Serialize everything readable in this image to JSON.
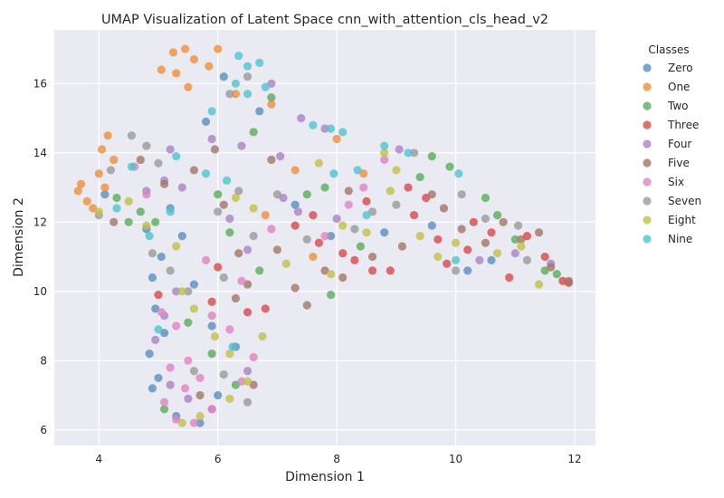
{
  "chart_data": {
    "type": "scatter",
    "title": "UMAP Visualization of Latent Space cnn_with_attention_cls_head_v2",
    "xlabel": "Dimension 1",
    "ylabel": "Dimension 2",
    "xlim": [
      3.25,
      12.35
    ],
    "ylim": [
      5.55,
      17.55
    ],
    "xticks": [
      4,
      6,
      8,
      10,
      12
    ],
    "yticks": [
      6,
      8,
      10,
      12,
      14,
      16
    ],
    "grid": true,
    "legend": {
      "title": "Classes",
      "placement": "outside-right"
    },
    "series": [
      {
        "name": "Zero",
        "color": "#5a8fc0",
        "points": [
          [
            4.9,
            7.2
          ],
          [
            5.0,
            7.5
          ],
          [
            4.85,
            8.2
          ],
          [
            5.1,
            8.8
          ],
          [
            4.95,
            9.5
          ],
          [
            4.9,
            10.4
          ],
          [
            5.05,
            11.0
          ],
          [
            4.8,
            11.8
          ],
          [
            5.2,
            12.4
          ],
          [
            5.4,
            11.6
          ],
          [
            5.6,
            10.2
          ],
          [
            5.9,
            9.0
          ],
          [
            6.3,
            8.4
          ],
          [
            6.0,
            7.0
          ],
          [
            5.3,
            6.4
          ],
          [
            5.7,
            6.2
          ],
          [
            4.1,
            12.8
          ],
          [
            5.8,
            14.9
          ],
          [
            6.1,
            16.2
          ],
          [
            6.7,
            15.2
          ],
          [
            7.3,
            12.5
          ],
          [
            7.9,
            11.6
          ],
          [
            8.8,
            11.7
          ],
          [
            9.6,
            11.9
          ],
          [
            10.2,
            10.6
          ],
          [
            10.6,
            10.9
          ]
        ]
      },
      {
        "name": "One",
        "color": "#f0903a",
        "points": [
          [
            3.7,
            13.1
          ],
          [
            3.8,
            12.6
          ],
          [
            3.9,
            12.4
          ],
          [
            4.0,
            13.4
          ],
          [
            4.05,
            14.1
          ],
          [
            4.15,
            14.5
          ],
          [
            4.25,
            13.8
          ],
          [
            4.1,
            13.0
          ],
          [
            3.65,
            12.9
          ],
          [
            5.05,
            16.4
          ],
          [
            5.25,
            16.9
          ],
          [
            5.45,
            17.0
          ],
          [
            5.6,
            16.7
          ],
          [
            5.85,
            16.5
          ],
          [
            6.0,
            17.0
          ],
          [
            5.3,
            16.3
          ],
          [
            5.5,
            15.9
          ],
          [
            6.9,
            15.4
          ],
          [
            6.8,
            12.2
          ],
          [
            7.6,
            11.0
          ],
          [
            7.3,
            13.5
          ],
          [
            8.0,
            14.4
          ],
          [
            8.45,
            13.4
          ],
          [
            6.3,
            15.7
          ]
        ]
      },
      {
        "name": "Two",
        "color": "#5aac5a",
        "points": [
          [
            4.3,
            12.7
          ],
          [
            4.5,
            12.0
          ],
          [
            4.7,
            12.3
          ],
          [
            4.95,
            12.0
          ],
          [
            5.5,
            9.1
          ],
          [
            5.9,
            8.2
          ],
          [
            6.3,
            7.3
          ],
          [
            5.1,
            6.6
          ],
          [
            6.0,
            12.8
          ],
          [
            6.2,
            11.7
          ],
          [
            6.6,
            14.6
          ],
          [
            6.9,
            15.6
          ],
          [
            7.8,
            13.0
          ],
          [
            7.9,
            9.9
          ],
          [
            8.4,
            11.3
          ],
          [
            9.4,
            13.3
          ],
          [
            9.6,
            13.9
          ],
          [
            9.9,
            13.6
          ],
          [
            10.5,
            12.7
          ],
          [
            10.7,
            12.2
          ],
          [
            11.0,
            11.5
          ],
          [
            11.5,
            10.6
          ],
          [
            11.7,
            10.5
          ],
          [
            6.7,
            10.6
          ],
          [
            7.5,
            12.8
          ]
        ]
      },
      {
        "name": "Three",
        "color": "#d9494a",
        "points": [
          [
            5.0,
            9.9
          ],
          [
            5.9,
            9.7
          ],
          [
            6.0,
            10.7
          ],
          [
            6.5,
            9.4
          ],
          [
            6.8,
            9.5
          ],
          [
            7.3,
            11.9
          ],
          [
            7.7,
            11.4
          ],
          [
            8.1,
            11.1
          ],
          [
            8.3,
            10.9
          ],
          [
            8.6,
            10.6
          ],
          [
            8.9,
            10.6
          ],
          [
            9.3,
            12.2
          ],
          [
            9.7,
            11.5
          ],
          [
            9.85,
            10.8
          ],
          [
            10.2,
            11.2
          ],
          [
            10.3,
            12.0
          ],
          [
            10.6,
            11.7
          ],
          [
            10.9,
            10.4
          ],
          [
            11.2,
            11.6
          ],
          [
            11.5,
            11.0
          ],
          [
            11.8,
            10.3
          ],
          [
            11.9,
            10.25
          ],
          [
            9.2,
            13.0
          ],
          [
            9.5,
            12.7
          ],
          [
            8.5,
            12.6
          ],
          [
            7.6,
            12.2
          ]
        ]
      },
      {
        "name": "Four",
        "color": "#a983c6",
        "points": [
          [
            4.8,
            12.9
          ],
          [
            5.2,
            14.1
          ],
          [
            5.1,
            13.2
          ],
          [
            5.4,
            13.0
          ],
          [
            5.9,
            14.4
          ],
          [
            6.4,
            14.2
          ],
          [
            6.2,
            12.1
          ],
          [
            6.5,
            11.2
          ],
          [
            5.3,
            10.0
          ],
          [
            5.1,
            9.3
          ],
          [
            4.95,
            8.6
          ],
          [
            5.2,
            7.3
          ],
          [
            5.5,
            6.9
          ],
          [
            5.9,
            6.6
          ],
          [
            6.5,
            7.7
          ],
          [
            7.1,
            12.7
          ],
          [
            7.35,
            12.3
          ],
          [
            7.05,
            13.9
          ],
          [
            7.4,
            15.0
          ],
          [
            8.0,
            12.1
          ],
          [
            9.05,
            14.1
          ],
          [
            10.4,
            10.9
          ],
          [
            11.0,
            11.1
          ],
          [
            11.6,
            10.8
          ],
          [
            7.8,
            14.7
          ],
          [
            6.9,
            16.0
          ]
        ]
      },
      {
        "name": "Five",
        "color": "#a37565",
        "points": [
          [
            4.25,
            12.0
          ],
          [
            4.7,
            13.8
          ],
          [
            5.1,
            13.1
          ],
          [
            5.6,
            13.5
          ],
          [
            5.95,
            14.1
          ],
          [
            6.1,
            12.5
          ],
          [
            6.35,
            11.1
          ],
          [
            6.3,
            9.8
          ],
          [
            6.5,
            10.2
          ],
          [
            7.0,
            11.2
          ],
          [
            7.3,
            10.1
          ],
          [
            7.5,
            9.6
          ],
          [
            7.8,
            10.6
          ],
          [
            8.1,
            10.4
          ],
          [
            8.6,
            11.0
          ],
          [
            9.1,
            11.3
          ],
          [
            9.6,
            12.8
          ],
          [
            9.8,
            12.4
          ],
          [
            10.1,
            11.8
          ],
          [
            10.5,
            11.4
          ],
          [
            10.8,
            12.0
          ],
          [
            11.1,
            11.5
          ],
          [
            11.4,
            11.7
          ],
          [
            11.6,
            10.7
          ],
          [
            11.9,
            10.3
          ],
          [
            8.2,
            12.9
          ],
          [
            6.6,
            7.3
          ],
          [
            5.7,
            7.0
          ],
          [
            6.9,
            13.8
          ]
        ]
      },
      {
        "name": "Six",
        "color": "#e083c3",
        "points": [
          [
            4.8,
            12.8
          ],
          [
            5.05,
            9.4
          ],
          [
            5.3,
            9.0
          ],
          [
            5.5,
            8.0
          ],
          [
            5.7,
            7.5
          ],
          [
            5.9,
            9.3
          ],
          [
            6.2,
            8.9
          ],
          [
            5.2,
            7.8
          ],
          [
            5.45,
            7.2
          ],
          [
            5.1,
            6.8
          ],
          [
            5.3,
            6.3
          ],
          [
            5.6,
            6.2
          ],
          [
            5.9,
            6.6
          ],
          [
            6.4,
            7.4
          ],
          [
            6.6,
            8.1
          ],
          [
            6.4,
            10.3
          ],
          [
            6.9,
            11.8
          ],
          [
            7.8,
            11.6
          ],
          [
            8.2,
            12.5
          ],
          [
            8.45,
            13.0
          ],
          [
            8.8,
            13.8
          ],
          [
            5.8,
            10.9
          ],
          [
            4.6,
            13.6
          ]
        ]
      },
      {
        "name": "Seven",
        "color": "#9a9a9a",
        "points": [
          [
            4.0,
            12.2
          ],
          [
            4.2,
            13.5
          ],
          [
            4.55,
            14.5
          ],
          [
            4.8,
            14.2
          ],
          [
            5.0,
            13.7
          ],
          [
            4.9,
            11.1
          ],
          [
            5.2,
            10.6
          ],
          [
            5.5,
            10.0
          ],
          [
            6.1,
            10.4
          ],
          [
            6.6,
            11.6
          ],
          [
            6.35,
            12.9
          ],
          [
            6.0,
            12.3
          ],
          [
            6.2,
            15.7
          ],
          [
            6.5,
            16.2
          ],
          [
            7.0,
            12.8
          ],
          [
            7.5,
            11.5
          ],
          [
            8.3,
            11.8
          ],
          [
            8.6,
            12.3
          ],
          [
            9.0,
            12.5
          ],
          [
            9.3,
            14.0
          ],
          [
            10.1,
            12.8
          ],
          [
            10.5,
            12.1
          ],
          [
            11.05,
            11.9
          ],
          [
            10.0,
            10.6
          ],
          [
            11.2,
            10.9
          ],
          [
            5.6,
            7.7
          ],
          [
            6.1,
            7.6
          ],
          [
            6.5,
            6.8
          ]
        ]
      },
      {
        "name": "Eight",
        "color": "#c2c047",
        "points": [
          [
            4.0,
            12.3
          ],
          [
            4.5,
            12.6
          ],
          [
            4.8,
            11.9
          ],
          [
            5.3,
            11.3
          ],
          [
            5.4,
            10.0
          ],
          [
            5.6,
            9.5
          ],
          [
            5.95,
            8.7
          ],
          [
            6.2,
            8.2
          ],
          [
            6.5,
            7.4
          ],
          [
            5.4,
            6.2
          ],
          [
            5.7,
            6.4
          ],
          [
            6.2,
            6.9
          ],
          [
            6.3,
            12.7
          ],
          [
            6.6,
            12.4
          ],
          [
            7.15,
            10.8
          ],
          [
            7.7,
            13.7
          ],
          [
            7.9,
            10.5
          ],
          [
            8.1,
            11.9
          ],
          [
            8.5,
            11.7
          ],
          [
            8.9,
            12.9
          ],
          [
            9.4,
            11.6
          ],
          [
            9.7,
            11.0
          ],
          [
            10.0,
            11.4
          ],
          [
            10.7,
            11.1
          ],
          [
            11.1,
            11.3
          ],
          [
            11.4,
            10.2
          ],
          [
            8.8,
            14.0
          ],
          [
            9.0,
            13.5
          ],
          [
            6.75,
            8.7
          ]
        ]
      },
      {
        "name": "Nine",
        "color": "#4ec4cf",
        "points": [
          [
            4.3,
            12.4
          ],
          [
            4.55,
            13.6
          ],
          [
            5.2,
            12.3
          ],
          [
            5.3,
            13.9
          ],
          [
            5.8,
            13.4
          ],
          [
            6.35,
            16.8
          ],
          [
            6.5,
            16.5
          ],
          [
            6.7,
            16.6
          ],
          [
            6.8,
            15.9
          ],
          [
            6.5,
            15.7
          ],
          [
            6.3,
            16.0
          ],
          [
            7.6,
            14.8
          ],
          [
            7.9,
            14.7
          ],
          [
            8.1,
            14.6
          ],
          [
            7.95,
            13.4
          ],
          [
            8.35,
            13.5
          ],
          [
            8.8,
            14.2
          ],
          [
            9.2,
            14.0
          ],
          [
            10.05,
            13.4
          ],
          [
            10.0,
            10.9
          ],
          [
            8.5,
            12.2
          ],
          [
            5.9,
            15.2
          ],
          [
            6.25,
            8.4
          ],
          [
            5.0,
            8.9
          ],
          [
            4.85,
            11.6
          ],
          [
            6.15,
            13.2
          ]
        ]
      }
    ]
  }
}
